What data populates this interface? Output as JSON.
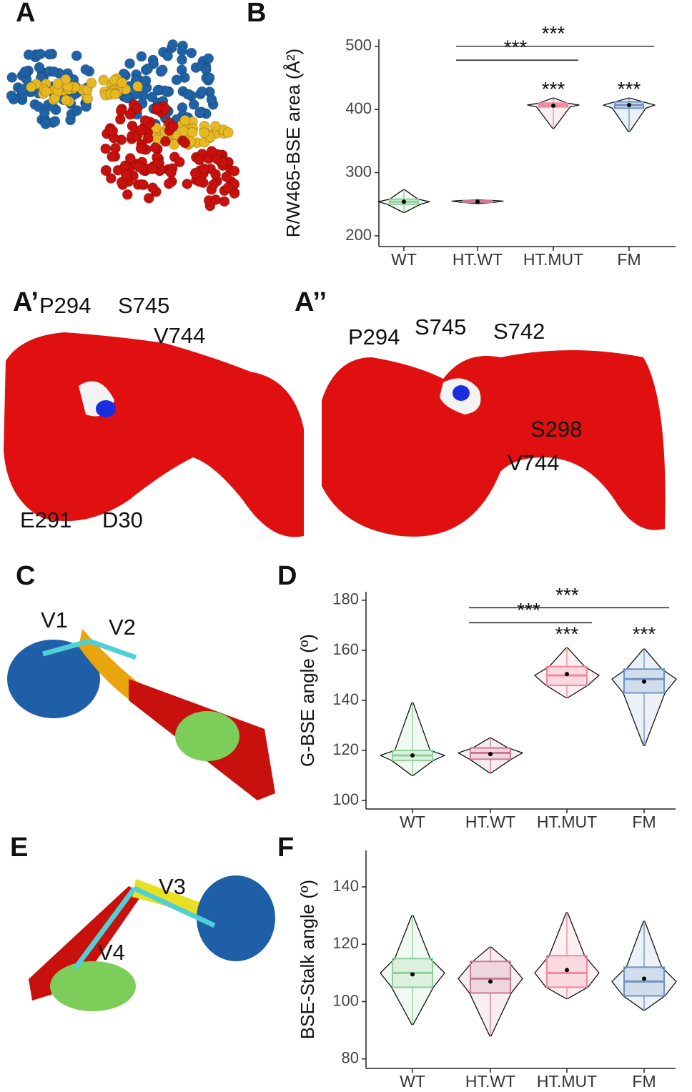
{
  "figures": [
    {
      "panel": "A"
    },
    {
      "panel": "A’",
      "labels": [
        "P294",
        "S745",
        "V744",
        "E291",
        "D30"
      ]
    },
    {
      "panel": "A’’",
      "labels": [
        "P294",
        "S745",
        "S742",
        "S298",
        "V744"
      ]
    },
    {
      "panel": "C",
      "labels": [
        "V1",
        "V2"
      ]
    },
    {
      "panel": "E",
      "labels": [
        "V3",
        "V4"
      ]
    }
  ],
  "chart_data": [
    {
      "type": "violin",
      "panel": "B",
      "y_label": "R/W465-BSE area (Å²)",
      "categories": [
        "WT",
        "HT.WT",
        "HT.MUT",
        "FM"
      ],
      "colors": [
        "#8fcf9c",
        "#c97a95",
        "#f0899a",
        "#6f93c0"
      ],
      "stats": [
        {
          "min": 237,
          "q1": 250,
          "median": 254,
          "q3": 258,
          "max": 273,
          "mean": 254
        },
        {
          "min": 251,
          "q1": 253,
          "median": 255,
          "q3": 256,
          "max": 257,
          "mean": 254
        },
        {
          "min": 370,
          "q1": 404,
          "median": 407,
          "q3": 410,
          "max": 418,
          "mean": 406
        },
        {
          "min": 365,
          "q1": 402,
          "median": 407,
          "q3": 412,
          "max": 418,
          "mean": 407
        }
      ],
      "ylim": [
        183,
        511
      ],
      "yticks": [
        200,
        300,
        400,
        500
      ],
      "comparisons": [
        {
          "groups": [
            "HT.WT",
            "FM"
          ],
          "y": 500,
          "label": "***"
        },
        {
          "groups": [
            "HT.WT",
            "HT.MUT"
          ],
          "y": 478,
          "label": "***"
        }
      ],
      "stars": [
        {
          "over": "HT.MUT",
          "y": 430,
          "label": "***"
        },
        {
          "over": "FM",
          "y": 430,
          "label": "***"
        }
      ]
    },
    {
      "type": "violin",
      "panel": "D",
      "y_label": "G-BSE angle (º)",
      "categories": [
        "WT",
        "HT.WT",
        "HT.MUT",
        "FM"
      ],
      "colors": [
        "#8fcf9c",
        "#c97a95",
        "#f0899a",
        "#6f93c0"
      ],
      "stats": [
        {
          "min": 110,
          "q1": 116,
          "median": 118,
          "q3": 120,
          "max": 139,
          "mean": 118
        },
        {
          "min": 111,
          "q1": 116.5,
          "median": 119,
          "q3": 121,
          "max": 125,
          "mean": 118.5
        },
        {
          "min": 141,
          "q1": 146,
          "median": 150,
          "q3": 153.5,
          "max": 161,
          "mean": 150.5
        },
        {
          "min": 122,
          "q1": 143,
          "median": 148.5,
          "q3": 152.5,
          "max": 160.5,
          "mean": 147.5
        }
      ],
      "ylim": [
        96.6,
        183.4
      ],
      "yticks": [
        100,
        120,
        140,
        160,
        180
      ],
      "comparisons": [
        {
          "groups": [
            "HT.WT",
            "FM"
          ],
          "y": 177,
          "label": "***"
        },
        {
          "groups": [
            "HT.WT",
            "HT.MUT"
          ],
          "y": 171,
          "label": "***"
        }
      ],
      "stars": [
        {
          "over": "HT.MUT",
          "y": 166,
          "label": "***"
        },
        {
          "over": "FM",
          "y": 166,
          "label": "***"
        }
      ]
    },
    {
      "type": "violin",
      "panel": "F",
      "y_label": "BSE-Stalk angle (º)",
      "categories": [
        "WT",
        "HT.WT",
        "HT.MUT",
        "FM"
      ],
      "colors": [
        "#8fcf9c",
        "#c97a95",
        "#f0899a",
        "#6f93c0"
      ],
      "stats": [
        {
          "min": 92,
          "q1": 105,
          "median": 110,
          "q3": 115,
          "max": 130,
          "mean": 109.5
        },
        {
          "min": 88,
          "q1": 103,
          "median": 108,
          "q3": 114,
          "max": 119,
          "mean": 107
        },
        {
          "min": 101,
          "q1": 105,
          "median": 110,
          "q3": 116,
          "max": 131,
          "mean": 111
        },
        {
          "min": 97,
          "q1": 102,
          "median": 107,
          "q3": 112,
          "max": 128,
          "mean": 108
        }
      ],
      "ylim": [
        76.7,
        152.7
      ],
      "yticks": [
        80,
        100,
        120,
        140
      ],
      "comparisons": [],
      "stars": []
    }
  ]
}
